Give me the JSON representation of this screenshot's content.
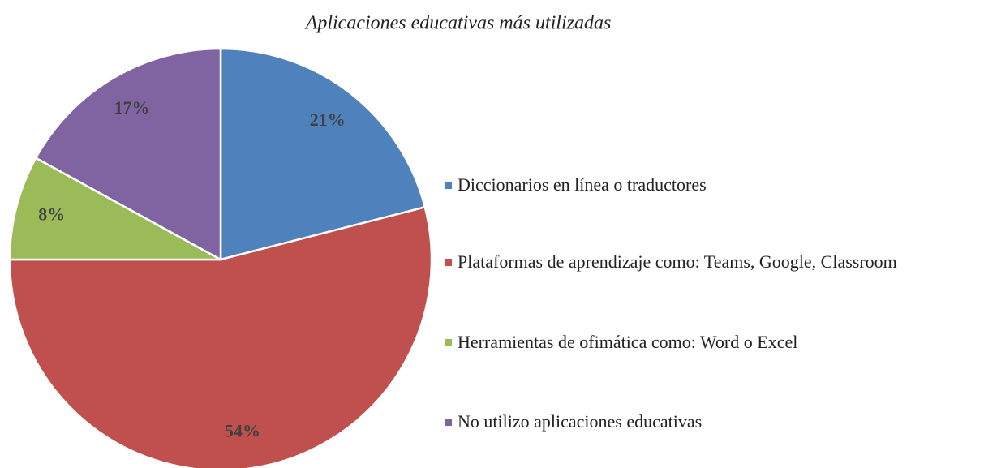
{
  "chart_data": {
    "type": "pie",
    "title": "Aplicaciones educativas más utilizadas",
    "categories": [
      "Diccionarios en línea o traductores",
      "Plataformas de aprendizaje como: Teams, Google, Classroom",
      "Herramientas de ofimática como: Word o Excel",
      "No utilizo aplicaciones educativas"
    ],
    "values": [
      21,
      54,
      8,
      17
    ],
    "value_labels": [
      "21%",
      "54%",
      "8%",
      "17%"
    ],
    "colors": [
      "#4f81bd",
      "#c0504d",
      "#9bbb59",
      "#8064a2"
    ],
    "legend": "right"
  }
}
